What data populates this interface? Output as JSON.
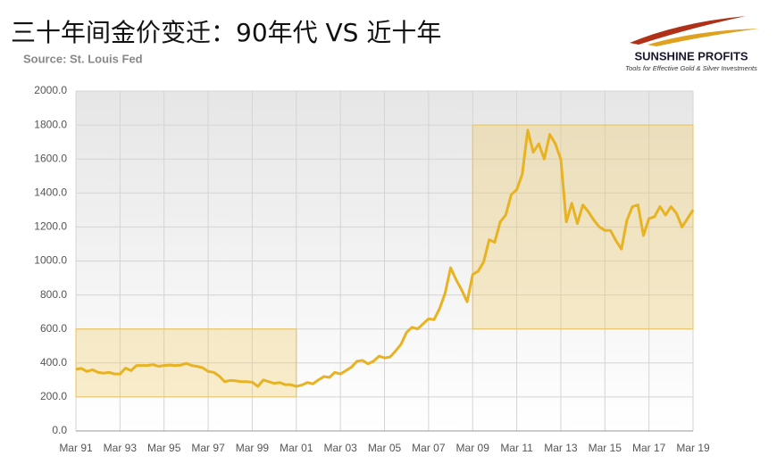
{
  "chart_data": {
    "type": "line",
    "title": "三十年间金价变迁：90年代 VS 近十年",
    "subtitle": "Source: St. Louis Fed",
    "logo": {
      "name": "SUNSHINE PROFITS",
      "tagline": "Tools for Effective Gold & Silver Investments"
    },
    "color": "#e8b322",
    "grid": true,
    "ylim": [
      0,
      2000
    ],
    "yticks": [
      {
        "value": 0,
        "label": "0.0"
      },
      {
        "value": 200,
        "label": "200.0"
      },
      {
        "value": 400,
        "label": "400.0"
      },
      {
        "value": 600,
        "label": "600.0"
      },
      {
        "value": 800,
        "label": "800.0"
      },
      {
        "value": 1000,
        "label": "1000.0"
      },
      {
        "value": 1200,
        "label": "1200.0"
      },
      {
        "value": 1400,
        "label": "1400.0"
      },
      {
        "value": 1600,
        "label": "1600.0"
      },
      {
        "value": 1800,
        "label": "1800.0"
      },
      {
        "value": 2000,
        "label": "2000.0"
      }
    ],
    "categories": [
      "Mar 91",
      null,
      null,
      null,
      null,
      null,
      null,
      null,
      "Mar 93",
      null,
      null,
      null,
      null,
      null,
      null,
      null,
      "Mar 95",
      null,
      null,
      null,
      null,
      null,
      null,
      null,
      "Mar 97",
      null,
      null,
      null,
      null,
      null,
      null,
      null,
      "Mar 99",
      null,
      null,
      null,
      null,
      null,
      null,
      null,
      "Mar 01",
      null,
      null,
      null,
      null,
      null,
      null,
      null,
      "Mar 03",
      null,
      null,
      null,
      null,
      null,
      null,
      null,
      "Mar 05",
      null,
      null,
      null,
      null,
      null,
      null,
      null,
      "Mar 07",
      null,
      null,
      null,
      null,
      null,
      null,
      null,
      "Mar 09",
      null,
      null,
      null,
      null,
      null,
      null,
      null,
      "Mar 11",
      null,
      null,
      null,
      null,
      null,
      null,
      null,
      "Mar 13",
      null,
      null,
      null,
      null,
      null,
      null,
      null,
      "Mar 15",
      null,
      null,
      null,
      null,
      null,
      null,
      null,
      "Mar 17",
      null,
      null,
      null,
      null,
      null,
      null,
      null,
      "Mar 19"
    ],
    "values": [
      363,
      368,
      350,
      360,
      345,
      340,
      345,
      335,
      335,
      370,
      355,
      385,
      385,
      385,
      390,
      380,
      385,
      388,
      385,
      387,
      398,
      385,
      380,
      372,
      350,
      345,
      323,
      290,
      297,
      295,
      290,
      290,
      287,
      262,
      300,
      290,
      280,
      285,
      272,
      272,
      262,
      270,
      285,
      277,
      300,
      320,
      315,
      345,
      335,
      355,
      375,
      410,
      415,
      395,
      410,
      440,
      430,
      435,
      470,
      510,
      580,
      610,
      600,
      630,
      660,
      655,
      720,
      810,
      960,
      890,
      830,
      760,
      920,
      940,
      995,
      1125,
      1110,
      1230,
      1270,
      1390,
      1420,
      1510,
      1770,
      1640,
      1690,
      1600,
      1745,
      1690,
      1600,
      1230,
      1340,
      1220,
      1330,
      1290,
      1240,
      1200,
      1180,
      1180,
      1120,
      1070,
      1240,
      1320,
      1330,
      1150,
      1250,
      1260,
      1320,
      1270,
      1320,
      1280,
      1200,
      1250,
      1300
    ],
    "highlights": [
      {
        "x": [
          "Mar 91",
          "Mar 01"
        ],
        "y": [
          200,
          600
        ]
      },
      {
        "x": [
          "Mar 09",
          "Mar 19"
        ],
        "y": [
          600,
          1800
        ]
      }
    ]
  }
}
